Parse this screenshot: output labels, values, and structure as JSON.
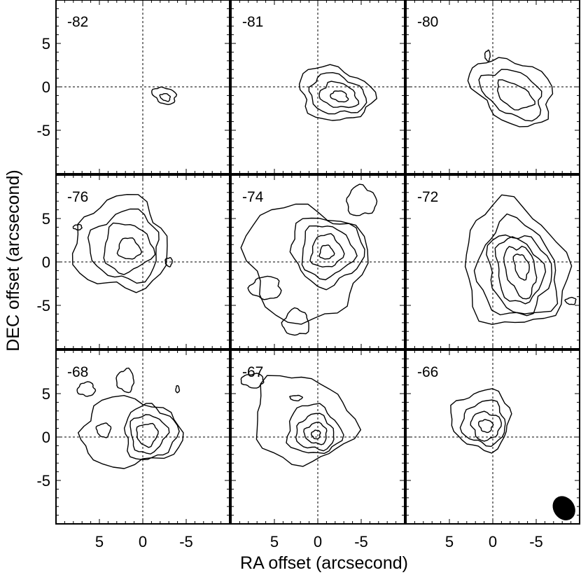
{
  "chart_data": {
    "type": "contour",
    "xlabel": "RA offset (arcsecond)",
    "ylabel": "DEC offset (arcsecond)",
    "xlim": [
      10,
      -10
    ],
    "ylim": [
      -10,
      10
    ],
    "xticks": [
      5,
      0,
      -5
    ],
    "yticks": [
      5,
      0,
      -5
    ],
    "xtick_labels": [
      "5",
      "0",
      "-5"
    ],
    "ytick_labels": [
      "5",
      "0",
      "-5"
    ],
    "crosshair": [
      0,
      0
    ],
    "grid": "3x3",
    "beam": {
      "panel": "-66",
      "x": -8.2,
      "y": -8.2,
      "major": 2.8,
      "minor": 2.3,
      "pa_deg": 35
    },
    "panels": [
      {
        "label": "-82",
        "contours": [
          {
            "x": -2.5,
            "y": -1.0,
            "rx": 1.4,
            "ry": 0.9,
            "rot": -20
          },
          {
            "x": -2.6,
            "y": -1.2,
            "rx": 0.6,
            "ry": 0.4,
            "rot": -20
          }
        ]
      },
      {
        "label": "-81",
        "contours": [
          {
            "x": -2.0,
            "y": -0.8,
            "rx": 4.3,
            "ry": 3.0,
            "rot": -15
          },
          {
            "x": -2.2,
            "y": -0.9,
            "rx": 3.3,
            "ry": 2.2,
            "rot": -15
          },
          {
            "x": -2.4,
            "y": -1.0,
            "rx": 2.2,
            "ry": 1.4,
            "rot": -15
          },
          {
            "x": -2.5,
            "y": -1.1,
            "rx": 1.0,
            "ry": 0.6,
            "rot": -15
          }
        ]
      },
      {
        "label": "-80",
        "contours": [
          {
            "x": -2.3,
            "y": -0.5,
            "rx": 5.0,
            "ry": 3.4,
            "rot": -30
          },
          {
            "x": -2.3,
            "y": -0.8,
            "rx": 3.8,
            "ry": 2.4,
            "rot": -30
          },
          {
            "x": -2.5,
            "y": -1.0,
            "rx": 2.3,
            "ry": 1.3,
            "rot": -30
          },
          {
            "x": 0.6,
            "y": 3.6,
            "rx": 0.3,
            "ry": 0.6,
            "rot": 0
          }
        ]
      },
      {
        "label": "-76",
        "contours": [
          {
            "x": 2.5,
            "y": 2.0,
            "rx": 5.4,
            "ry": 5.3,
            "rot": -25
          },
          {
            "x": 2.0,
            "y": 1.8,
            "rx": 4.0,
            "ry": 4.0,
            "rot": -25
          },
          {
            "x": 1.8,
            "y": 1.6,
            "rx": 2.8,
            "ry": 2.8,
            "rot": -25
          },
          {
            "x": 1.6,
            "y": 1.5,
            "rx": 1.3,
            "ry": 1.2,
            "rot": -25
          },
          {
            "x": 7.5,
            "y": 4.0,
            "rx": 0.5,
            "ry": 0.3,
            "rot": 0
          },
          {
            "x": -3.0,
            "y": 0.0,
            "rx": 0.4,
            "ry": 0.5,
            "rot": 0
          }
        ]
      },
      {
        "label": "-74",
        "contours": [
          {
            "x": 1.5,
            "y": 0.0,
            "rx": 7.0,
            "ry": 6.5,
            "rot": -35
          },
          {
            "x": -1.0,
            "y": 1.3,
            "rx": 4.2,
            "ry": 3.8,
            "rot": -20
          },
          {
            "x": -1.0,
            "y": 1.2,
            "rx": 3.0,
            "ry": 3.0,
            "rot": -20
          },
          {
            "x": -1.0,
            "y": 1.2,
            "rx": 1.8,
            "ry": 1.9,
            "rot": -20
          },
          {
            "x": -1.0,
            "y": 1.1,
            "rx": 0.8,
            "ry": 0.8,
            "rot": -20
          },
          {
            "x": -5.0,
            "y": 7.0,
            "rx": 1.7,
            "ry": 1.7,
            "rot": 0
          },
          {
            "x": 2.5,
            "y": -7.0,
            "rx": 1.5,
            "ry": 1.5,
            "rot": 0
          },
          {
            "x": 6.0,
            "y": -3.0,
            "rx": 1.8,
            "ry": 1.3,
            "rot": 0
          }
        ]
      },
      {
        "label": "-72",
        "contours": [
          {
            "x": -2.5,
            "y": -0.5,
            "rx": 5.8,
            "ry": 7.2,
            "rot": 15
          },
          {
            "x": -2.8,
            "y": -1.0,
            "rx": 4.5,
            "ry": 5.6,
            "rot": 15
          },
          {
            "x": -3.0,
            "y": -1.2,
            "rx": 3.5,
            "ry": 4.6,
            "rot": 15
          },
          {
            "x": -3.0,
            "y": -1.0,
            "rx": 2.6,
            "ry": 3.8,
            "rot": 15
          },
          {
            "x": -3.2,
            "y": -1.0,
            "rx": 1.7,
            "ry": 3.0,
            "rot": 15
          },
          {
            "x": -3.3,
            "y": -0.5,
            "rx": 0.8,
            "ry": 1.5,
            "rot": 15
          },
          {
            "x": -9.0,
            "y": -4.5,
            "rx": 0.6,
            "ry": 0.4,
            "rot": 0
          }
        ]
      },
      {
        "label": "-68",
        "contours": [
          {
            "x": 1.5,
            "y": 0.5,
            "rx": 5.8,
            "ry": 3.9,
            "rot": 0
          },
          {
            "x": -0.8,
            "y": 0.5,
            "rx": 3.0,
            "ry": 3.1,
            "rot": -10
          },
          {
            "x": -0.6,
            "y": 0.4,
            "rx": 2.1,
            "ry": 2.2,
            "rot": -10
          },
          {
            "x": -0.5,
            "y": 0.3,
            "rx": 1.2,
            "ry": 1.3,
            "rot": -10
          },
          {
            "x": 4.5,
            "y": 0.8,
            "rx": 0.8,
            "ry": 0.8,
            "rot": 0
          },
          {
            "x": 2.0,
            "y": 6.5,
            "rx": 1.0,
            "ry": 1.3,
            "rot": 0
          },
          {
            "x": 6.5,
            "y": 5.5,
            "rx": 1.0,
            "ry": 0.8,
            "rot": 0
          },
          {
            "x": -4.0,
            "y": 5.5,
            "rx": 0.2,
            "ry": 0.4,
            "rot": 0
          }
        ]
      },
      {
        "label": "-67",
        "contours": [
          {
            "x": 1.8,
            "y": 2.0,
            "rx": 5.8,
            "ry": 4.9,
            "rot": -20
          },
          {
            "x": 0.5,
            "y": 0.8,
            "rx": 3.1,
            "ry": 2.8,
            "rot": -20
          },
          {
            "x": 0.3,
            "y": 0.5,
            "rx": 2.2,
            "ry": 2.0,
            "rot": -20
          },
          {
            "x": 0.2,
            "y": 0.4,
            "rx": 1.3,
            "ry": 1.2,
            "rot": -20
          },
          {
            "x": 0.2,
            "y": 0.3,
            "rx": 0.5,
            "ry": 0.5,
            "rot": -20
          },
          {
            "x": 7.5,
            "y": 6.5,
            "rx": 1.3,
            "ry": 0.8,
            "rot": 0
          },
          {
            "x": 2.5,
            "y": 4.5,
            "rx": 0.7,
            "ry": 0.3,
            "rot": 0
          }
        ]
      },
      {
        "label": "-66",
        "contours": [
          {
            "x": 1.3,
            "y": 2.0,
            "rx": 3.4,
            "ry": 3.4,
            "rot": -25
          },
          {
            "x": 1.0,
            "y": 1.6,
            "rx": 2.5,
            "ry": 2.5,
            "rot": -25
          },
          {
            "x": 0.8,
            "y": 1.3,
            "rx": 1.7,
            "ry": 1.6,
            "rot": -25
          },
          {
            "x": 0.8,
            "y": 1.3,
            "rx": 0.8,
            "ry": 0.7,
            "rot": -25
          }
        ]
      }
    ]
  }
}
